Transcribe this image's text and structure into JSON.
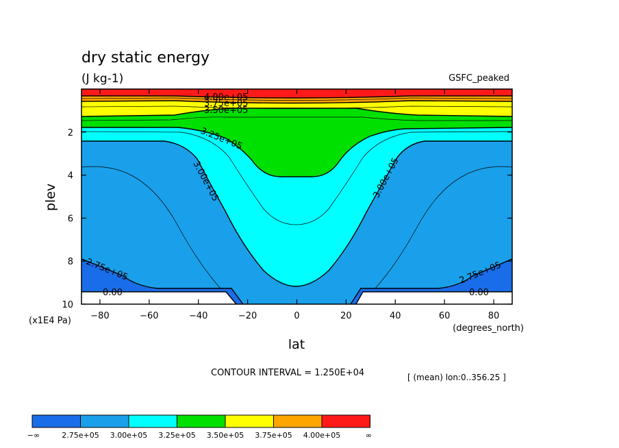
{
  "chart_data": {
    "type": "contour",
    "title": "dry static energy",
    "units": "(J kg-1)",
    "source_label": "GSFC_peaked",
    "xlabel": "lat",
    "x_units": "(degrees_north)",
    "ylabel": "plev",
    "y_units": "(x1E4 Pa)",
    "x_ticks": [
      -80,
      -60,
      -40,
      -20,
      0,
      20,
      40,
      60,
      80
    ],
    "y_ticks": [
      2,
      4,
      6,
      8,
      10
    ],
    "xlim": [
      -87.5,
      87.5
    ],
    "ylim": [
      10,
      0
    ],
    "contour_interval": "CONTOUR INTERVAL = 1.250E+04",
    "mean_note": "[ (mean) lon:0..356.25 ]",
    "contour_labels": [
      "4.00e+05",
      "3.75e+05",
      "3.50e+05",
      "3.25e+05",
      "3.00e+05",
      "3.00e+05",
      "2.75e+05",
      "2.75e+05",
      "0.00",
      "0.00"
    ],
    "colorbar": {
      "levels": [
        "−∞",
        "2.75e+05",
        "3.00e+05",
        "3.25e+05",
        "3.50e+05",
        "3.75e+05",
        "4.00e+05",
        "∞"
      ],
      "colors": [
        "#1a6de8",
        "#1aa0ea",
        "#00ffff",
        "#00e000",
        "#ffff00",
        "#ffa500",
        "#ff1a1a"
      ]
    },
    "band_colors": {
      "white": "#ffffff",
      "lt275": "#1a6de8",
      "b275_300": "#1aa0ea",
      "b300_325": "#00ffff",
      "b325_350": "#00e000",
      "b350_375": "#ffff00",
      "b375_400": "#ffa500",
      "gt400": "#ff1a1a"
    }
  }
}
